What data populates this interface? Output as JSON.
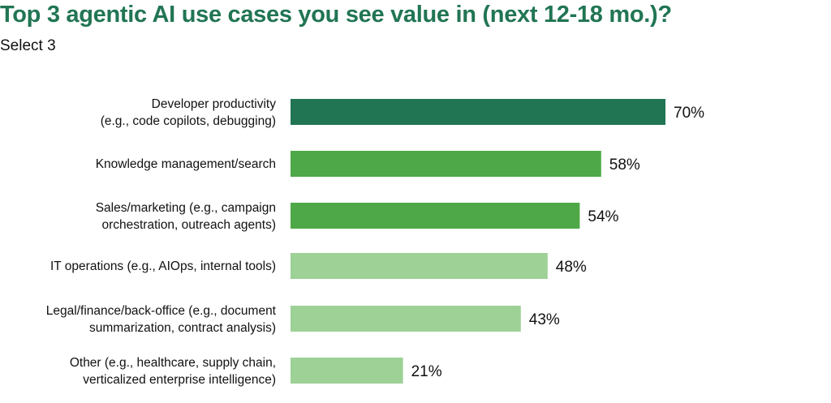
{
  "chart_data": {
    "type": "bar",
    "orientation": "horizontal",
    "title": "Top 3 agentic AI use cases you see value in (next 12-18 mo.)?",
    "subtitle": "Select 3",
    "categories": [
      [
        "Developer productivity",
        "(e.g., code copilots, debugging)"
      ],
      [
        "Knowledge management/search"
      ],
      [
        "Sales/marketing (e.g., campaign",
        "orchestration, outreach agents)"
      ],
      [
        "IT operations (e.g., AIOps, internal tools)"
      ],
      [
        "Legal/finance/back-office (e.g., document",
        "summarization, contract analysis)"
      ],
      [
        "Other (e.g., healthcare, supply chain,",
        "verticalized enterprise intelligence)"
      ]
    ],
    "values": [
      70,
      58,
      54,
      48,
      43,
      21
    ],
    "value_labels": [
      "70%",
      "58%",
      "54%",
      "48%",
      "43%",
      "21%"
    ],
    "colors": [
      "#217553",
      "#4ea847",
      "#4ea847",
      "#9dd196",
      "#9dd196",
      "#9dd196"
    ],
    "xlim": [
      0,
      100
    ],
    "grid": false,
    "legend": "none"
  }
}
